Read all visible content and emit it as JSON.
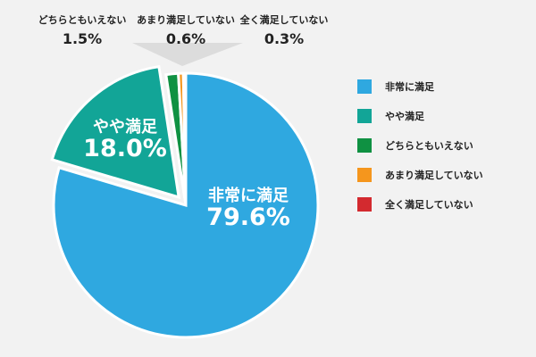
{
  "chart_data": {
    "type": "pie",
    "categories": [
      "非常に満足",
      "やや満足",
      "どちらともいえない",
      "あまり満足していない",
      "全く満足していない"
    ],
    "values": [
      79.6,
      18.0,
      1.5,
      0.6,
      0.3
    ],
    "value_labels": [
      "79.6%",
      "18.0%",
      "1.5%",
      "0.6%",
      "0.3%"
    ],
    "colors": [
      "#2fa8e0",
      "#12a597",
      "#0f9142",
      "#f5961d",
      "#d32a2f"
    ],
    "exploded": "やや満足",
    "legend": "right",
    "title": ""
  }
}
